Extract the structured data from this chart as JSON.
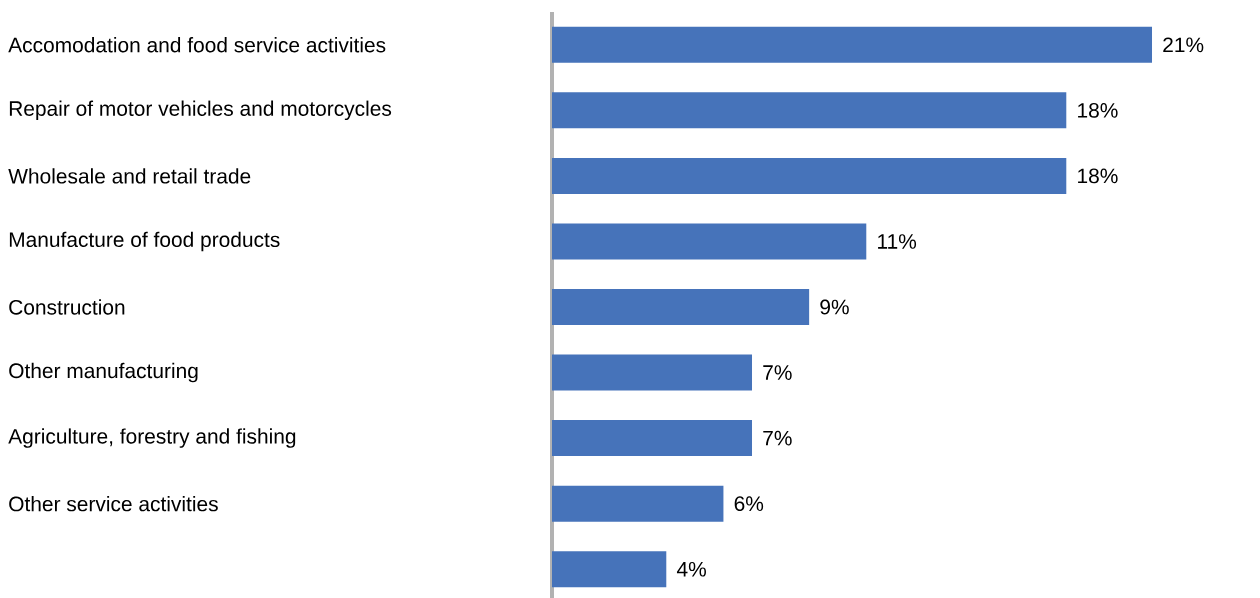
{
  "chart_data": {
    "type": "bar",
    "orientation": "horizontal",
    "categories": [
      "Accomodation and food service activities",
      "Repair of motor vehicles and motorcycles",
      "Wholesale and retail trade",
      "Manufacture of food products",
      "Construction",
      "Other manufacturing",
      "Agriculture, forestry and fishing",
      "Other service activities",
      null
    ],
    "values": [
      21,
      18,
      18,
      11,
      9,
      7,
      7,
      6,
      4
    ],
    "value_labels": [
      "21%",
      "18%",
      "18%",
      "11%",
      "9%",
      "7%",
      "7%",
      "6%",
      "4%"
    ],
    "color": "#4673ba"
  }
}
